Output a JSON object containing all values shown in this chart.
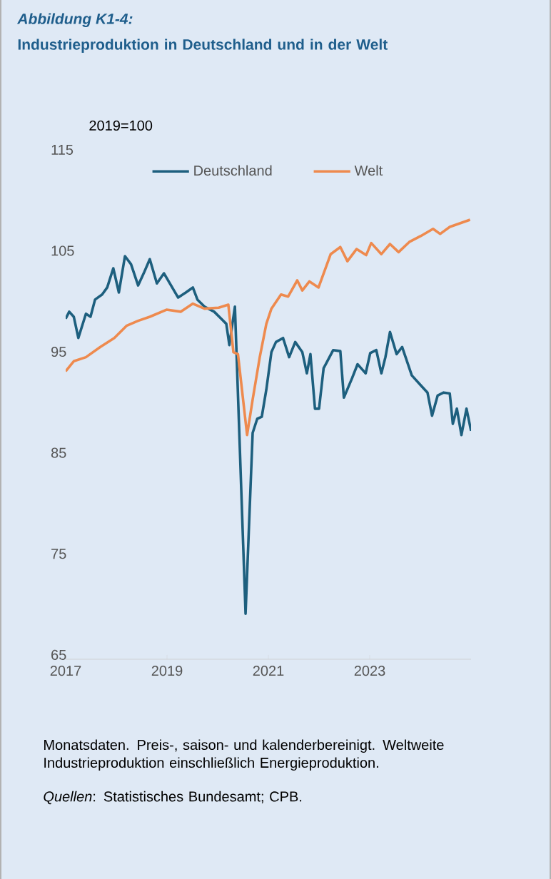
{
  "chart_data": {
    "type": "line",
    "title": "Abbildung K1-4:",
    "subtitle": "Industrieproduktion in Deutschland und in der Welt",
    "ylabel": "2019=100",
    "annotations": [
      "Monatsdaten. Preis-, saison- und kalenderbereinigt. Weltweite Industrieproduktion einschließlich Energieproduktion.",
      "*Quellen*: Statistisches Bundesamt; CPB."
    ],
    "xlim": [
      2017,
      2025
    ],
    "xticks": [
      2017,
      2019,
      2021,
      2023
    ],
    "ylim": [
      65,
      115
    ],
    "yticks": [
      65,
      75,
      85,
      95,
      105,
      115
    ],
    "legend": "top",
    "series": [
      {
        "name": "Deutschland",
        "color": "#1d5f7e",
        "x": [
          2017.0,
          2017.07,
          2017.16,
          2017.25,
          2017.4,
          2017.49,
          2017.58,
          2017.72,
          2017.82,
          2017.94,
          2018.05,
          2018.17,
          2018.29,
          2018.43,
          2018.54,
          2018.66,
          2018.8,
          2018.94,
          2019.08,
          2019.22,
          2019.37,
          2019.51,
          2019.6,
          2019.74,
          2019.93,
          2020.07,
          2020.17,
          2020.23,
          2020.34,
          2020.55,
          2020.69,
          2020.78,
          2020.87,
          2020.96,
          2021.06,
          2021.15,
          2021.29,
          2021.41,
          2021.53,
          2021.67,
          2021.76,
          2021.83,
          2021.92,
          2022.0,
          2022.09,
          2022.28,
          2022.42,
          2022.49,
          2022.65,
          2022.76,
          2022.92,
          2023.01,
          2023.13,
          2023.23,
          2023.31,
          2023.4,
          2023.53,
          2023.64,
          2023.83,
          2024.01,
          2024.14,
          2024.23,
          2024.34,
          2024.46,
          2024.58,
          2024.64,
          2024.72,
          2024.81,
          2024.91,
          2025.0
        ],
        "values": [
          98.7,
          99.4,
          98.9,
          96.8,
          99.2,
          98.9,
          100.6,
          101.1,
          101.8,
          103.7,
          101.3,
          104.9,
          104.1,
          102.0,
          103.2,
          104.6,
          102.2,
          103.2,
          102.0,
          100.8,
          101.3,
          101.8,
          100.6,
          99.9,
          99.4,
          98.7,
          98.2,
          96.1,
          99.9,
          69.5,
          87.4,
          88.8,
          89.0,
          91.7,
          95.4,
          96.4,
          96.8,
          94.9,
          96.4,
          95.4,
          93.3,
          95.2,
          89.8,
          89.8,
          93.8,
          95.6,
          95.5,
          90.9,
          92.8,
          94.2,
          93.3,
          95.3,
          95.6,
          93.3,
          94.9,
          97.4,
          95.2,
          95.9,
          93.1,
          92.1,
          91.4,
          89.1,
          91.1,
          91.4,
          91.3,
          88.3,
          89.8,
          87.2,
          89.8,
          87.6
        ]
      },
      {
        "name": "Welt",
        "color": "#ee8a4e",
        "x": [
          2017.0,
          2017.16,
          2017.4,
          2017.68,
          2017.96,
          2018.2,
          2018.43,
          2018.66,
          2018.99,
          2019.27,
          2019.51,
          2019.74,
          2020.02,
          2020.21,
          2020.31,
          2020.4,
          2020.58,
          2020.69,
          2020.83,
          2020.96,
          2021.06,
          2021.25,
          2021.39,
          2021.57,
          2021.67,
          2021.81,
          2021.99,
          2022.23,
          2022.42,
          2022.56,
          2022.74,
          2022.93,
          2023.03,
          2023.23,
          2023.4,
          2023.57,
          2023.78,
          2024.01,
          2024.25,
          2024.39,
          2024.58,
          2024.81,
          2024.98
        ],
        "values": [
          93.5,
          94.5,
          94.9,
          95.9,
          96.8,
          98.0,
          98.5,
          98.9,
          99.6,
          99.4,
          100.2,
          99.7,
          99.8,
          100.1,
          95.4,
          95.2,
          87.2,
          90.7,
          94.9,
          98.2,
          99.7,
          101.1,
          100.9,
          102.5,
          101.5,
          102.4,
          101.8,
          105.1,
          105.8,
          104.4,
          105.6,
          105.0,
          106.2,
          105.1,
          106.1,
          105.3,
          106.3,
          106.9,
          107.6,
          107.1,
          107.8,
          108.2,
          108.5
        ]
      }
    ]
  }
}
